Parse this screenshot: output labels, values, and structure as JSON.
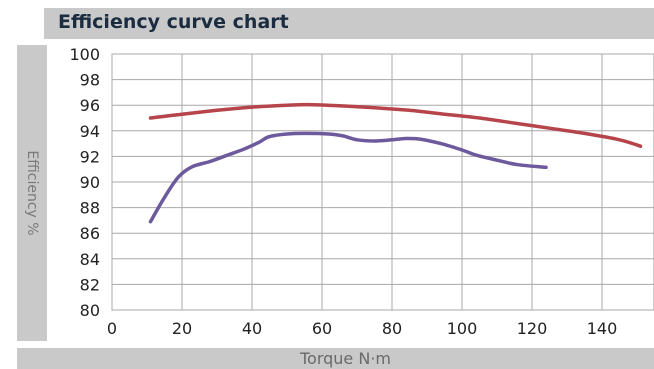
{
  "header": {
    "title": "Efficiency curve chart"
  },
  "chart_data": {
    "type": "line",
    "title": "Efficiency curve chart",
    "xlabel": "Torque N·m",
    "ylabel": "Efficiency %",
    "xlim": [
      0,
      150
    ],
    "ylim": [
      80,
      100
    ],
    "x_ticks": [
      0,
      20,
      40,
      60,
      80,
      100,
      120,
      140
    ],
    "y_ticks": [
      80,
      82,
      84,
      86,
      88,
      90,
      92,
      94,
      96,
      98,
      100
    ],
    "grid": true,
    "legend": "none",
    "series": [
      {
        "color": "#b5454a",
        "points": [
          [
            11,
            95.0
          ],
          [
            20,
            95.3
          ],
          [
            30,
            95.6
          ],
          [
            40,
            95.85
          ],
          [
            50,
            96.0
          ],
          [
            56,
            96.05
          ],
          [
            65,
            95.95
          ],
          [
            75,
            95.8
          ],
          [
            85,
            95.6
          ],
          [
            95,
            95.3
          ],
          [
            105,
            95.0
          ],
          [
            115,
            94.6
          ],
          [
            125,
            94.2
          ],
          [
            135,
            93.8
          ],
          [
            145,
            93.3
          ],
          [
            151,
            92.8
          ]
        ]
      },
      {
        "color": "#6d5a9c",
        "points": [
          [
            11,
            86.9
          ],
          [
            15,
            88.8
          ],
          [
            19,
            90.4
          ],
          [
            23,
            91.2
          ],
          [
            28,
            91.6
          ],
          [
            33,
            92.1
          ],
          [
            38,
            92.6
          ],
          [
            42,
            93.1
          ],
          [
            45,
            93.55
          ],
          [
            50,
            93.75
          ],
          [
            55,
            93.8
          ],
          [
            62,
            93.75
          ],
          [
            66,
            93.6
          ],
          [
            70,
            93.3
          ],
          [
            75,
            93.2
          ],
          [
            80,
            93.3
          ],
          [
            84,
            93.4
          ],
          [
            88,
            93.35
          ],
          [
            94,
            93.0
          ],
          [
            100,
            92.5
          ],
          [
            104,
            92.1
          ],
          [
            110,
            91.7
          ],
          [
            116,
            91.35
          ],
          [
            124,
            91.15
          ]
        ]
      }
    ]
  }
}
